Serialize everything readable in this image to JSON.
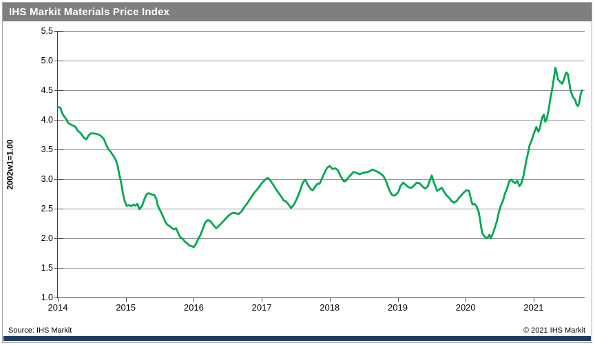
{
  "title_bar": {
    "title": "IHS Markit Materials Price Index"
  },
  "footer": {
    "source": "Source: IHS Markit",
    "copyright": "© 2021  IHS Markit"
  },
  "colors": {
    "title_bar_bg": "#7f7f7f",
    "title_text": "#ffffff",
    "line_green": "#00a651",
    "grid_gray": "#8f8f8f",
    "axis_dark": "#3f3f3f",
    "footer_bar_blue": "#1f3a63",
    "frame_border": "#a6a6a6"
  },
  "chart_data": {
    "type": "line",
    "title": "IHS Markit Materials Price Index",
    "xlabel": "",
    "ylabel": "2002w1=1.00",
    "ylim": [
      1.0,
      5.5
    ],
    "ytick_step": 0.5,
    "xlim": [
      2014,
      2021.75
    ],
    "xticks": [
      2014,
      2015,
      2016,
      2017,
      2018,
      2019,
      2020,
      2021
    ],
    "grid": "horizontal gridlines every 0.5, gray",
    "legend": "none",
    "series": [
      {
        "name": "Materials Price Index (2002w1=1.00)",
        "color": "#00a651",
        "points": [
          [
            2014.0,
            4.22
          ],
          [
            2014.04,
            4.2
          ],
          [
            2014.06,
            4.12
          ],
          [
            2014.09,
            4.06
          ],
          [
            2014.12,
            4.02
          ],
          [
            2014.15,
            3.95
          ],
          [
            2014.19,
            3.92
          ],
          [
            2014.23,
            3.9
          ],
          [
            2014.26,
            3.88
          ],
          [
            2014.29,
            3.82
          ],
          [
            2014.33,
            3.78
          ],
          [
            2014.36,
            3.74
          ],
          [
            2014.38,
            3.7
          ],
          [
            2014.42,
            3.67
          ],
          [
            2014.45,
            3.73
          ],
          [
            2014.48,
            3.77
          ],
          [
            2014.53,
            3.77
          ],
          [
            2014.58,
            3.76
          ],
          [
            2014.62,
            3.74
          ],
          [
            2014.65,
            3.71
          ],
          [
            2014.68,
            3.67
          ],
          [
            2014.71,
            3.58
          ],
          [
            2014.74,
            3.51
          ],
          [
            2014.77,
            3.47
          ],
          [
            2014.8,
            3.42
          ],
          [
            2014.83,
            3.37
          ],
          [
            2014.86,
            3.3
          ],
          [
            2014.88,
            3.22
          ],
          [
            2014.9,
            3.1
          ],
          [
            2014.93,
            2.95
          ],
          [
            2014.95,
            2.8
          ],
          [
            2014.98,
            2.64
          ],
          [
            2015.01,
            2.55
          ],
          [
            2015.05,
            2.56
          ],
          [
            2015.08,
            2.54
          ],
          [
            2015.11,
            2.57
          ],
          [
            2015.14,
            2.55
          ],
          [
            2015.17,
            2.58
          ],
          [
            2015.2,
            2.49
          ],
          [
            2015.24,
            2.55
          ],
          [
            2015.28,
            2.68
          ],
          [
            2015.31,
            2.75
          ],
          [
            2015.34,
            2.76
          ],
          [
            2015.38,
            2.74
          ],
          [
            2015.42,
            2.73
          ],
          [
            2015.45,
            2.66
          ],
          [
            2015.47,
            2.55
          ],
          [
            2015.51,
            2.46
          ],
          [
            2015.55,
            2.36
          ],
          [
            2015.58,
            2.28
          ],
          [
            2015.61,
            2.23
          ],
          [
            2015.65,
            2.2
          ],
          [
            2015.68,
            2.17
          ],
          [
            2015.71,
            2.15
          ],
          [
            2015.74,
            2.17
          ],
          [
            2015.77,
            2.09
          ],
          [
            2015.8,
            2.02
          ],
          [
            2015.84,
            1.99
          ],
          [
            2015.87,
            1.94
          ],
          [
            2015.9,
            1.92
          ],
          [
            2015.93,
            1.88
          ],
          [
            2015.96,
            1.87
          ],
          [
            2016.0,
            1.85
          ],
          [
            2016.03,
            1.9
          ],
          [
            2016.07,
            2.0
          ],
          [
            2016.1,
            2.06
          ],
          [
            2016.14,
            2.18
          ],
          [
            2016.17,
            2.27
          ],
          [
            2016.21,
            2.31
          ],
          [
            2016.25,
            2.28
          ],
          [
            2016.29,
            2.22
          ],
          [
            2016.33,
            2.17
          ],
          [
            2016.37,
            2.21
          ],
          [
            2016.42,
            2.27
          ],
          [
            2016.46,
            2.32
          ],
          [
            2016.5,
            2.37
          ],
          [
            2016.54,
            2.41
          ],
          [
            2016.58,
            2.43
          ],
          [
            2016.62,
            2.42
          ],
          [
            2016.66,
            2.41
          ],
          [
            2016.7,
            2.45
          ],
          [
            2016.74,
            2.52
          ],
          [
            2016.78,
            2.58
          ],
          [
            2016.82,
            2.65
          ],
          [
            2016.86,
            2.72
          ],
          [
            2016.89,
            2.77
          ],
          [
            2016.93,
            2.82
          ],
          [
            2016.97,
            2.88
          ],
          [
            2017.0,
            2.93
          ],
          [
            2017.05,
            2.99
          ],
          [
            2017.09,
            3.02
          ],
          [
            2017.13,
            2.97
          ],
          [
            2017.17,
            2.9
          ],
          [
            2017.21,
            2.83
          ],
          [
            2017.25,
            2.76
          ],
          [
            2017.29,
            2.7
          ],
          [
            2017.32,
            2.64
          ],
          [
            2017.36,
            2.62
          ],
          [
            2017.4,
            2.56
          ],
          [
            2017.43,
            2.51
          ],
          [
            2017.47,
            2.56
          ],
          [
            2017.51,
            2.65
          ],
          [
            2017.55,
            2.76
          ],
          [
            2017.58,
            2.86
          ],
          [
            2017.61,
            2.95
          ],
          [
            2017.64,
            2.99
          ],
          [
            2017.68,
            2.9
          ],
          [
            2017.72,
            2.83
          ],
          [
            2017.75,
            2.81
          ],
          [
            2017.79,
            2.88
          ],
          [
            2017.82,
            2.92
          ],
          [
            2017.85,
            2.92
          ],
          [
            2017.89,
            3.02
          ],
          [
            2017.93,
            3.12
          ],
          [
            2017.96,
            3.19
          ],
          [
            2018.0,
            3.22
          ],
          [
            2018.04,
            3.17
          ],
          [
            2018.08,
            3.18
          ],
          [
            2018.12,
            3.15
          ],
          [
            2018.16,
            3.05
          ],
          [
            2018.2,
            2.97
          ],
          [
            2018.23,
            2.96
          ],
          [
            2018.27,
            3.02
          ],
          [
            2018.31,
            3.07
          ],
          [
            2018.35,
            3.12
          ],
          [
            2018.4,
            3.1
          ],
          [
            2018.44,
            3.08
          ],
          [
            2018.48,
            3.1
          ],
          [
            2018.52,
            3.11
          ],
          [
            2018.56,
            3.12
          ],
          [
            2018.6,
            3.14
          ],
          [
            2018.63,
            3.16
          ],
          [
            2018.67,
            3.14
          ],
          [
            2018.71,
            3.12
          ],
          [
            2018.75,
            3.09
          ],
          [
            2018.79,
            3.05
          ],
          [
            2018.83,
            2.96
          ],
          [
            2018.87,
            2.83
          ],
          [
            2018.91,
            2.74
          ],
          [
            2018.94,
            2.72
          ],
          [
            2018.97,
            2.73
          ],
          [
            2019.01,
            2.78
          ],
          [
            2019.04,
            2.88
          ],
          [
            2019.08,
            2.94
          ],
          [
            2019.12,
            2.9
          ],
          [
            2019.16,
            2.86
          ],
          [
            2019.2,
            2.85
          ],
          [
            2019.24,
            2.89
          ],
          [
            2019.28,
            2.94
          ],
          [
            2019.32,
            2.93
          ],
          [
            2019.36,
            2.88
          ],
          [
            2019.4,
            2.84
          ],
          [
            2019.44,
            2.87
          ],
          [
            2019.47,
            2.97
          ],
          [
            2019.5,
            3.06
          ],
          [
            2019.53,
            2.95
          ],
          [
            2019.56,
            2.86
          ],
          [
            2019.58,
            2.8
          ],
          [
            2019.62,
            2.83
          ],
          [
            2019.65,
            2.85
          ],
          [
            2019.69,
            2.77
          ],
          [
            2019.72,
            2.72
          ],
          [
            2019.76,
            2.68
          ],
          [
            2019.79,
            2.63
          ],
          [
            2019.83,
            2.6
          ],
          [
            2019.87,
            2.63
          ],
          [
            2019.9,
            2.68
          ],
          [
            2019.94,
            2.73
          ],
          [
            2019.97,
            2.77
          ],
          [
            2020.01,
            2.81
          ],
          [
            2020.05,
            2.8
          ],
          [
            2020.08,
            2.65
          ],
          [
            2020.1,
            2.57
          ],
          [
            2020.13,
            2.58
          ],
          [
            2020.16,
            2.54
          ],
          [
            2020.19,
            2.45
          ],
          [
            2020.21,
            2.33
          ],
          [
            2020.23,
            2.17
          ],
          [
            2020.25,
            2.07
          ],
          [
            2020.28,
            2.03
          ],
          [
            2020.31,
            2.0
          ],
          [
            2020.33,
            2.02
          ],
          [
            2020.35,
            2.06
          ],
          [
            2020.37,
            2.0
          ],
          [
            2020.4,
            2.08
          ],
          [
            2020.43,
            2.18
          ],
          [
            2020.46,
            2.29
          ],
          [
            2020.49,
            2.45
          ],
          [
            2020.52,
            2.56
          ],
          [
            2020.55,
            2.64
          ],
          [
            2020.58,
            2.76
          ],
          [
            2020.61,
            2.84
          ],
          [
            2020.64,
            2.96
          ],
          [
            2020.67,
            2.99
          ],
          [
            2020.7,
            2.95
          ],
          [
            2020.73,
            2.93
          ],
          [
            2020.76,
            2.97
          ],
          [
            2020.79,
            2.88
          ],
          [
            2020.82,
            2.93
          ],
          [
            2020.85,
            3.05
          ],
          [
            2020.87,
            3.18
          ],
          [
            2020.89,
            3.3
          ],
          [
            2020.91,
            3.4
          ],
          [
            2020.94,
            3.57
          ],
          [
            2020.97,
            3.65
          ],
          [
            2021.0,
            3.76
          ],
          [
            2021.02,
            3.82
          ],
          [
            2021.04,
            3.88
          ],
          [
            2021.07,
            3.8
          ],
          [
            2021.09,
            3.85
          ],
          [
            2021.11,
            3.97
          ],
          [
            2021.13,
            4.05
          ],
          [
            2021.15,
            4.09
          ],
          [
            2021.17,
            3.97
          ],
          [
            2021.19,
            4.0
          ],
          [
            2021.22,
            4.16
          ],
          [
            2021.24,
            4.32
          ],
          [
            2021.26,
            4.44
          ],
          [
            2021.28,
            4.57
          ],
          [
            2021.3,
            4.72
          ],
          [
            2021.32,
            4.88
          ],
          [
            2021.34,
            4.78
          ],
          [
            2021.36,
            4.68
          ],
          [
            2021.39,
            4.64
          ],
          [
            2021.42,
            4.61
          ],
          [
            2021.44,
            4.66
          ],
          [
            2021.46,
            4.74
          ],
          [
            2021.48,
            4.8
          ],
          [
            2021.5,
            4.78
          ],
          [
            2021.52,
            4.66
          ],
          [
            2021.54,
            4.51
          ],
          [
            2021.56,
            4.44
          ],
          [
            2021.58,
            4.38
          ],
          [
            2021.61,
            4.34
          ],
          [
            2021.63,
            4.26
          ],
          [
            2021.65,
            4.23
          ],
          [
            2021.67,
            4.28
          ],
          [
            2021.69,
            4.42
          ],
          [
            2021.71,
            4.5
          ]
        ]
      }
    ]
  }
}
